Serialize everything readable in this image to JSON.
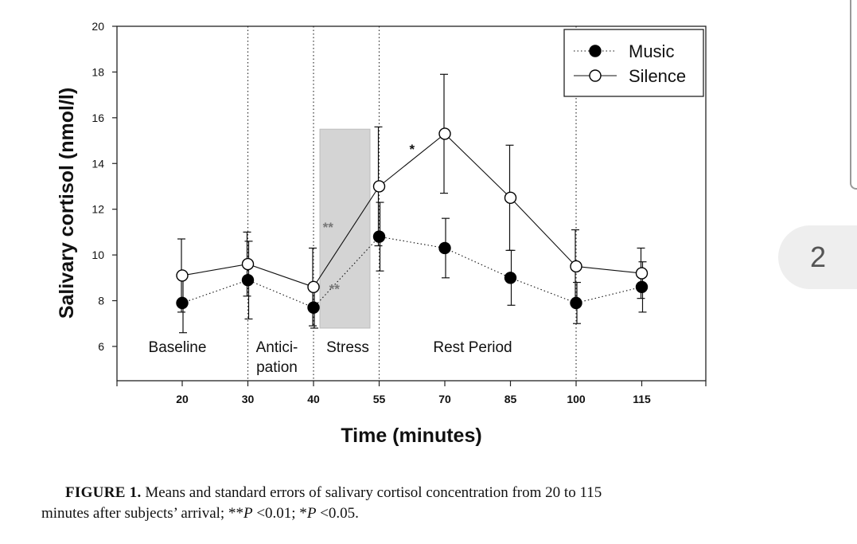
{
  "chart_data": {
    "type": "line",
    "ylabel": "Salivary cortisol (nmol/l)",
    "xlabel": "Time (minutes)",
    "x": [
      20,
      30,
      40,
      55,
      70,
      85,
      100,
      115
    ],
    "x_tick_labels": [
      "20",
      "30",
      "40",
      "55",
      "70",
      "85",
      "100",
      "115"
    ],
    "ylim": [
      4.5,
      20
    ],
    "y_ticks": [
      6,
      8,
      10,
      12,
      14,
      16,
      18,
      20
    ],
    "y_tick_labels": [
      "6",
      "8",
      "10",
      "12",
      "14",
      "16",
      "18",
      "20"
    ],
    "grid": false,
    "legend_position": "top-right",
    "series": [
      {
        "name": "Music",
        "marker": "filled-circle",
        "line_style": "dotted",
        "values": [
          7.9,
          8.9,
          7.7,
          10.8,
          10.3,
          9.0,
          7.9,
          8.6
        ],
        "errors": [
          1.3,
          1.7,
          0.9,
          1.5,
          1.3,
          1.2,
          0.9,
          1.1
        ]
      },
      {
        "name": "Silence",
        "marker": "open-circle",
        "line_style": "solid",
        "values": [
          9.1,
          9.6,
          8.6,
          13.0,
          15.3,
          12.5,
          9.5,
          9.2
        ],
        "errors": [
          1.6,
          1.4,
          1.7,
          2.6,
          2.6,
          2.3,
          1.6,
          1.1
        ]
      }
    ],
    "phases": [
      {
        "lines": [
          "Baseline"
        ]
      },
      {
        "lines": [
          "Antici-",
          "pation"
        ]
      },
      {
        "lines": [
          "Stress"
        ]
      },
      {
        "lines": [
          "Rest Period"
        ]
      }
    ],
    "stress_band": {
      "y_range": [
        6.8,
        15.5
      ]
    },
    "annotations": [
      {
        "text": "*",
        "x_between": [
          55,
          70
        ],
        "y": 14.7
      },
      {
        "text": "**",
        "x_between": [
          40,
          55
        ],
        "y": 11.3
      },
      {
        "text": "**",
        "x_between": [
          40,
          55
        ],
        "y": 8.6
      }
    ]
  },
  "caption": {
    "label": "FIGURE 1.",
    "line1": "Means and standard errors of salivary cortisol concentration from 20 to 115",
    "line2_start": "minutes after subjects’ arrival; **",
    "p_symbol": "P",
    "line2_mid": " <0.01; *",
    "line2_end": " <0.05."
  },
  "side_tab": {
    "number": "2"
  }
}
